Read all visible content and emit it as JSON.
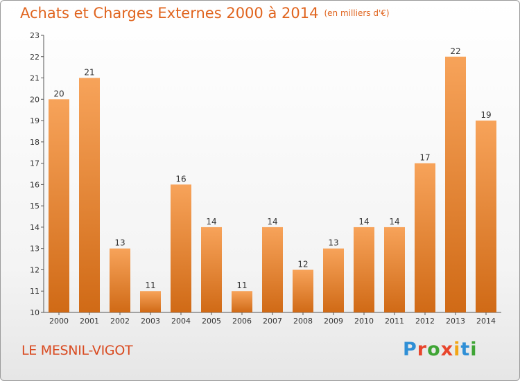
{
  "page": {
    "title": "Achats et Charges Externes 2000 à 2014",
    "unit": "(en milliers d'€)",
    "commune": "LE MESNIL-VIGOT",
    "logo": [
      "P",
      "r",
      "o",
      "x",
      "i",
      "t",
      "i"
    ],
    "logo_colors": [
      "#2f8fd6",
      "#e8452c",
      "#3fa535",
      "#e8452c",
      "#f2a516",
      "#2f8fd6",
      "#3fa535"
    ]
  },
  "chart_data": {
    "type": "bar",
    "title": "Achats et Charges Externes 2000 à 2014",
    "subtitle": "(en milliers d'€)",
    "xlabel": "",
    "ylabel": "",
    "categories": [
      "2000",
      "2001",
      "2002",
      "2003",
      "2004",
      "2005",
      "2006",
      "2007",
      "2008",
      "2009",
      "2010",
      "2011",
      "2012",
      "2013",
      "2014"
    ],
    "values": [
      20,
      21,
      13,
      11,
      16,
      14,
      11,
      14,
      12,
      13,
      14,
      14,
      17,
      22,
      19
    ],
    "ylim": [
      10,
      23
    ],
    "yticks": [
      10,
      11,
      12,
      13,
      14,
      15,
      16,
      17,
      18,
      19,
      20,
      21,
      22,
      23
    ],
    "grid": false,
    "bar_color": "#f07f23"
  }
}
